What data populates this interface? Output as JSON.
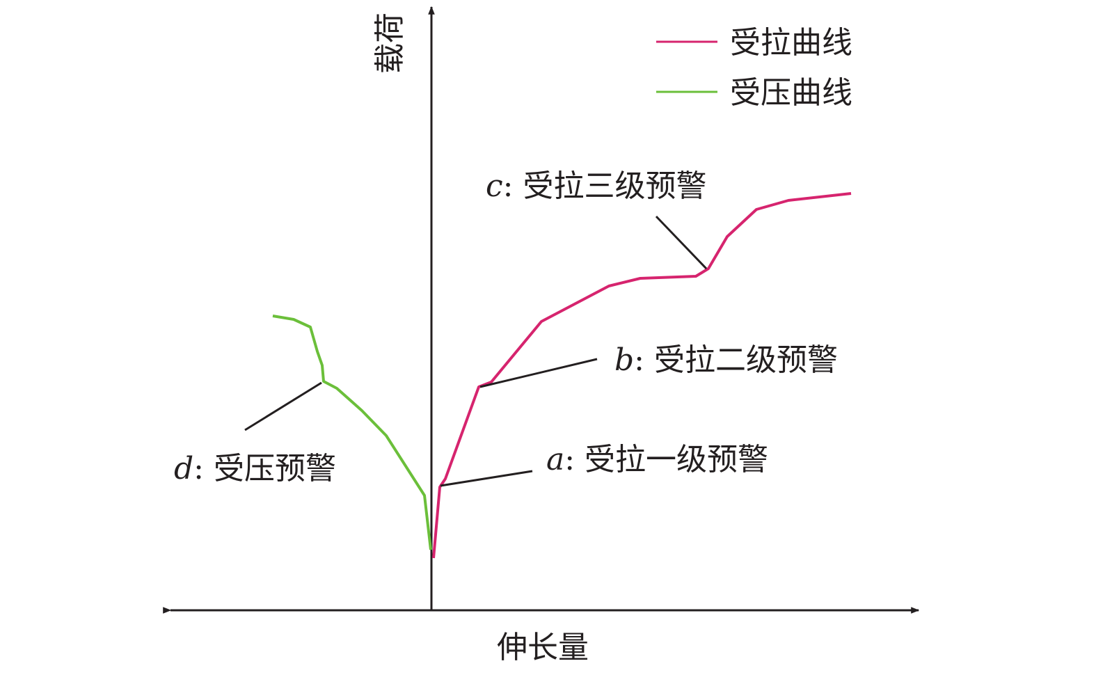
{
  "chart_data": {
    "type": "line",
    "x_label": "伸长量",
    "y_label": "载荷",
    "xlim": [
      -37.5,
      70
    ],
    "ylim": [
      0,
      86.7
    ],
    "legend": "top-right",
    "series": [
      {
        "name": "受拉曲线",
        "color": "#d6246e",
        "x": [
          0.3,
          1.2,
          2.0,
          6.8,
          8.6,
          15.8,
          25.5,
          30.0,
          38.0,
          39.8,
          42.5,
          46.7,
          51.3,
          60.3
        ],
        "values": [
          7.5,
          17.7,
          18.9,
          32.1,
          32.8,
          41.5,
          46.6,
          47.7,
          48.0,
          49.1,
          53.7,
          57.6,
          58.9,
          59.9
        ]
      },
      {
        "name": "受压曲线",
        "color": "#6bbf3a",
        "x": [
          -0.1,
          -1.0,
          -6.5,
          -10.0,
          -13.6,
          -15.5,
          -15.7,
          -16.4,
          -17.4,
          -19.8,
          -22.8
        ],
        "values": [
          8.7,
          16.5,
          25.1,
          28.7,
          31.9,
          32.9,
          35.2,
          37.2,
          40.7,
          41.8,
          42.3
        ]
      }
    ],
    "annotations": [
      {
        "letter": "a",
        "text": ": 受拉一级预警"
      },
      {
        "letter": "b",
        "text": ": 受拉二级预警"
      },
      {
        "letter": "c",
        "text": ": 受拉三级预警"
      },
      {
        "letter": "d",
        "text": ": 受压预警"
      }
    ]
  }
}
